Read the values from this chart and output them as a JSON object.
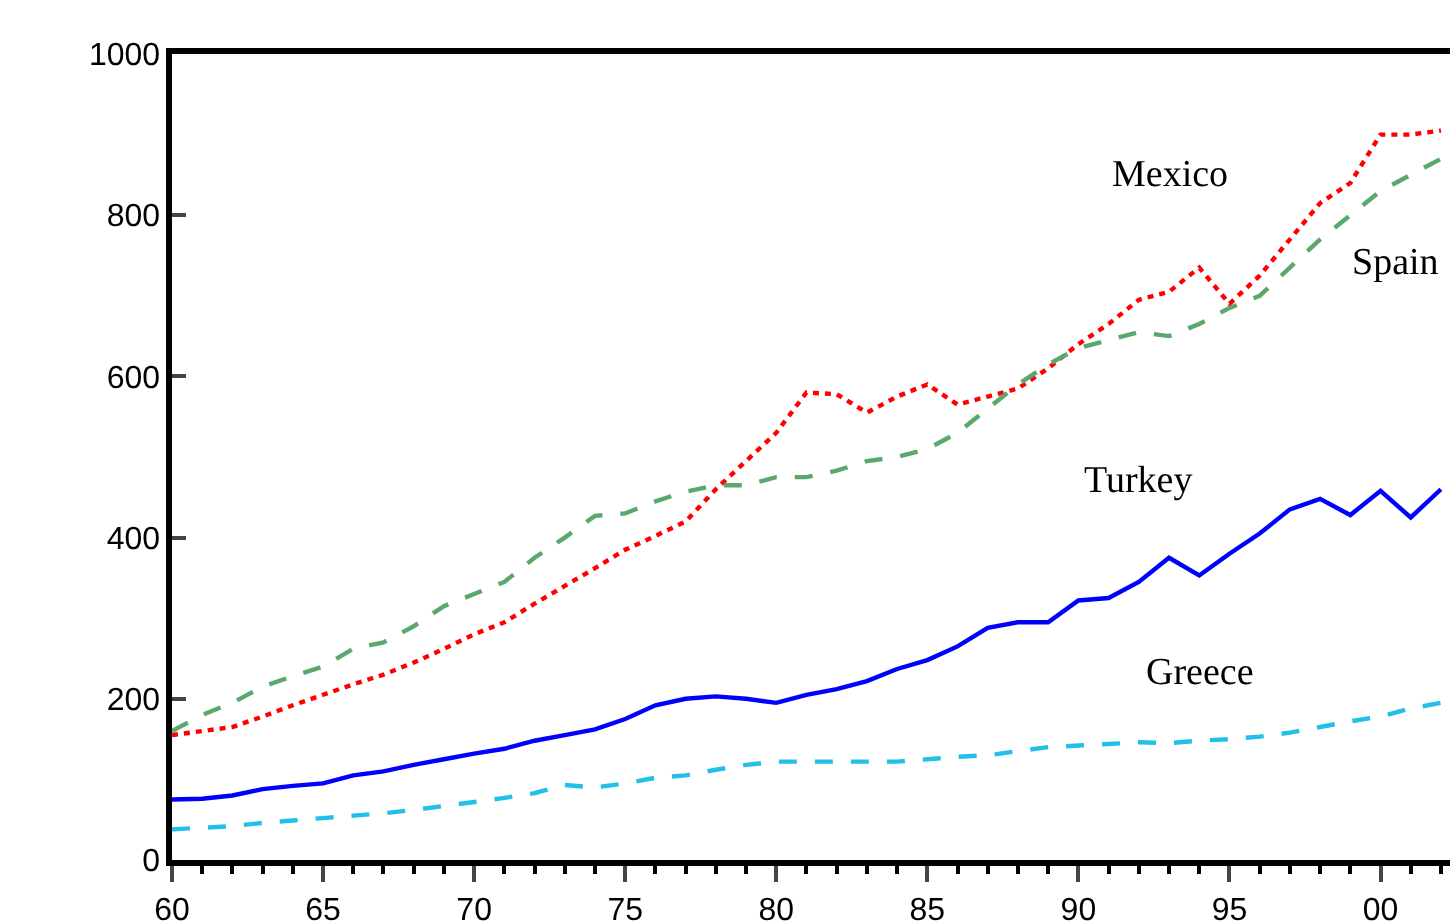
{
  "chart_data": {
    "type": "line",
    "x": [
      1960,
      1961,
      1962,
      1963,
      1964,
      1965,
      1966,
      1967,
      1968,
      1969,
      1970,
      1971,
      1972,
      1973,
      1974,
      1975,
      1976,
      1977,
      1978,
      1979,
      1980,
      1981,
      1982,
      1983,
      1984,
      1985,
      1986,
      1987,
      1988,
      1989,
      1990,
      1991,
      1992,
      1993,
      1994,
      1995,
      1996,
      1997,
      1998,
      1999,
      2000,
      2001,
      2002
    ],
    "series": [
      {
        "name": "Mexico",
        "color": "#ff0000",
        "line_style": "dotted",
        "values": [
          155,
          160,
          165,
          178,
          192,
          205,
          218,
          230,
          245,
          262,
          280,
          295,
          318,
          340,
          362,
          385,
          402,
          420,
          460,
          495,
          530,
          580,
          578,
          555,
          575,
          590,
          565,
          575,
          585,
          610,
          640,
          665,
          695,
          705,
          735,
          690,
          725,
          770,
          815,
          840,
          900,
          900,
          905
        ]
      },
      {
        "name": "Spain",
        "color": "#5aa86e",
        "line_style": "dashed",
        "values": [
          160,
          180,
          195,
          215,
          228,
          240,
          262,
          270,
          290,
          315,
          330,
          345,
          375,
          400,
          427,
          430,
          445,
          457,
          465,
          465,
          475,
          475,
          483,
          495,
          500,
          510,
          530,
          560,
          590,
          615,
          635,
          645,
          655,
          650,
          665,
          685,
          700,
          735,
          770,
          800,
          830,
          850,
          870
        ]
      },
      {
        "name": "Turkey",
        "color": "#0000ff",
        "line_style": "solid",
        "values": [
          75,
          76,
          80,
          88,
          92,
          95,
          105,
          110,
          118,
          125,
          132,
          138,
          148,
          155,
          162,
          175,
          192,
          200,
          203,
          200,
          195,
          205,
          212,
          222,
          237,
          248,
          265,
          288,
          295,
          295,
          322,
          325,
          345,
          375,
          353,
          380,
          405,
          435,
          448,
          428,
          458,
          425,
          460
        ]
      },
      {
        "name": "Greece",
        "color": "#22c0e8",
        "line_style": "dashed",
        "values": [
          38,
          40,
          42,
          46,
          49,
          52,
          55,
          58,
          62,
          67,
          72,
          77,
          83,
          93,
          90,
          95,
          102,
          105,
          112,
          118,
          122,
          122,
          122,
          122,
          122,
          125,
          128,
          130,
          135,
          140,
          142,
          144,
          146,
          145,
          148,
          150,
          153,
          158,
          165,
          172,
          178,
          188,
          195
        ]
      }
    ],
    "xlim": [
      1960,
      2002.3
    ],
    "xticks": [
      {
        "value": 1960,
        "label": "60"
      },
      {
        "value": 1965,
        "label": "65"
      },
      {
        "value": 1970,
        "label": "70"
      },
      {
        "value": 1975,
        "label": "75"
      },
      {
        "value": 1980,
        "label": "80"
      },
      {
        "value": 1985,
        "label": "85"
      },
      {
        "value": 1990,
        "label": "90"
      },
      {
        "value": 1995,
        "label": "95"
      },
      {
        "value": 2000,
        "label": "00"
      }
    ],
    "ylim": [
      0,
      1000
    ],
    "yticks": [
      0,
      200,
      400,
      600,
      800,
      1000
    ],
    "grid": false,
    "legend": false
  }
}
